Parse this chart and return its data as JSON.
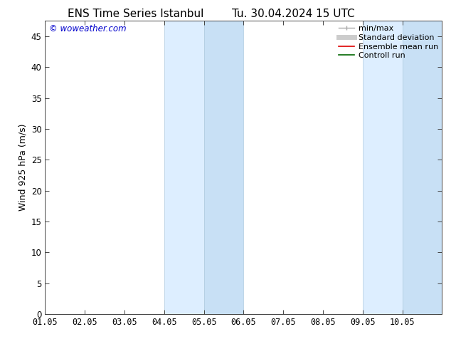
{
  "title_left": "ENS Time Series Istanbul",
  "title_right": "Tu. 30.04.2024 15 UTC",
  "ylabel": "Wind 925 hPa (m/s)",
  "watermark": "© woweather.com",
  "watermark_color": "#0000cc",
  "xlim_start": 0,
  "xlim_end": 10,
  "ylim_min": 0,
  "ylim_max": 47.5,
  "yticks": [
    0,
    5,
    10,
    15,
    20,
    25,
    30,
    35,
    40,
    45
  ],
  "xtick_labels": [
    "01.05",
    "02.05",
    "03.05",
    "04.05",
    "05.05",
    "06.05",
    "07.05",
    "08.05",
    "09.05",
    "10.05"
  ],
  "shaded_regions": [
    {
      "xmin": 3.0,
      "xmax": 4.0,
      "color": "#ddeeff"
    },
    {
      "xmin": 4.0,
      "xmax": 5.0,
      "color": "#c8e0f5"
    },
    {
      "xmin": 8.0,
      "xmax": 9.0,
      "color": "#ddeeff"
    },
    {
      "xmin": 9.0,
      "xmax": 10.0,
      "color": "#c8e0f5"
    }
  ],
  "shaded_edge_color": "#b0cce0",
  "bg_color": "#ffffff",
  "plot_bg_color": "#ffffff",
  "legend_items": [
    {
      "label": "min/max",
      "color": "#aaaaaa",
      "lw": 1.0
    },
    {
      "label": "Standard deviation",
      "color": "#cccccc",
      "lw": 5
    },
    {
      "label": "Ensemble mean run",
      "color": "#dd0000",
      "lw": 1.2
    },
    {
      "label": "Controll run",
      "color": "#006600",
      "lw": 1.2
    }
  ],
  "title_fontsize": 11,
  "axis_fontsize": 9,
  "tick_fontsize": 8.5,
  "legend_fontsize": 8
}
